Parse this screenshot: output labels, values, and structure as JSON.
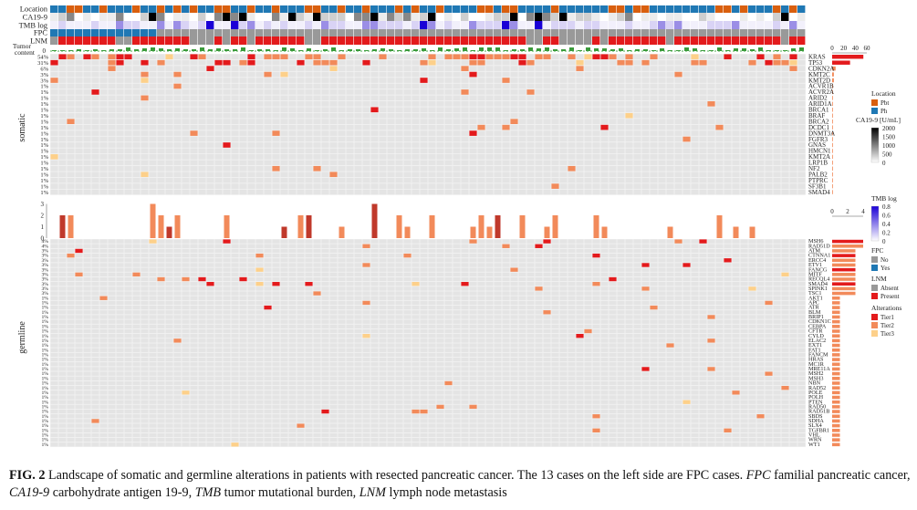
{
  "figure": {
    "track_labels": [
      "Location",
      "CA19-9",
      "TMB log",
      "FPC",
      "LNM"
    ],
    "tumor_content_label": [
      "Tumor",
      "content"
    ],
    "section_somatic": "somatic",
    "section_germline": "germline",
    "somatic_genes": [
      "KRAS",
      "TP53",
      "CDKN2A",
      "KMT2C",
      "KMT2D",
      "ACVR1B",
      "ACVR2A",
      "ARID2",
      "ARID1A",
      "BRCA1",
      "BRAF",
      "BRCA2",
      "DCDC1",
      "DNMT3A",
      "FGFR3",
      "GNAS",
      "HMCN1",
      "KMT2A",
      "LRP1B",
      "NF2",
      "PALB2",
      "PTPRC",
      "SF3B1",
      "SMAD4"
    ],
    "germline_genes": [
      "MSH6",
      "RAD51D",
      "ATM",
      "CTNNA1",
      "ERCC4",
      "ETV1",
      "FANCG",
      "MITF",
      "RECQL4",
      "SMAD4",
      "SPINK1",
      "TSC1",
      "AKT1",
      "APC",
      "ATR",
      "BLM",
      "BRIP1",
      "CDKN1C",
      "CEBPA",
      "CFTR",
      "CYLD",
      "ELAC2",
      "EXT1",
      "FAT1",
      "FANCM",
      "HRAS",
      "MC1R",
      "MRE11A",
      "MSH2",
      "MSH3",
      "NBN",
      "RAD52",
      "POLE",
      "POLH",
      "PTEN",
      "RAD50",
      "RAD51B",
      "SBDS",
      "SDHA",
      "SLX4",
      "TGFBR1",
      "VHL",
      "WRN",
      "WT1"
    ],
    "somatic_pct": [
      "54%",
      "31%",
      "6%",
      "3%",
      "3%",
      "1%",
      "1%",
      "1%",
      "1%",
      "1%",
      "1%",
      "1%",
      "1%",
      "1%",
      "1%",
      "1%",
      "1%",
      "1%",
      "1%",
      "1%",
      "1%",
      "1%",
      "1%",
      "1%"
    ],
    "germline_pct": [
      "4%",
      "4%",
      "3%",
      "3%",
      "3%",
      "3%",
      "3%",
      "3%",
      "3%",
      "3%",
      "3%",
      "3%",
      "1%",
      "1%",
      "1%",
      "1%",
      "1%",
      "1%",
      "1%",
      "1%",
      "1%",
      "1%",
      "1%",
      "1%",
      "1%",
      "1%",
      "1%",
      "1%",
      "1%",
      "1%",
      "1%",
      "1%",
      "1%",
      "1%",
      "1%",
      "1%",
      "1%",
      "1%",
      "1%",
      "1%",
      "1%",
      "1%",
      "1%",
      "1%"
    ],
    "somatic_bar_ticks": [
      "0",
      "20",
      "40",
      "60"
    ],
    "germline_bar_ticks": [
      "0",
      "2",
      "4"
    ],
    "mid_hist_ticks": [
      "0",
      "1",
      "2",
      "3"
    ],
    "tumor_content_ticks": [
      "0"
    ],
    "legend": {
      "location": {
        "title": "Location",
        "items": [
          {
            "label": "Pbt",
            "color": "#d95f0e"
          },
          {
            "label": "Ph",
            "color": "#1f78b4"
          }
        ]
      },
      "ca199": {
        "title": "CA19-9 [U/mL]",
        "ticks": [
          "2000",
          "1500",
          "1000",
          "500",
          "0"
        ]
      },
      "tmb": {
        "title": "TMB log",
        "ticks": [
          "0.8",
          "0.6",
          "0.4",
          "0.2",
          "0"
        ]
      },
      "fpc": {
        "title": "FPC",
        "items": [
          {
            "label": "No",
            "color": "#999999"
          },
          {
            "label": "Yes",
            "color": "#1f78b4"
          }
        ]
      },
      "lnm": {
        "title": "LNM",
        "items": [
          {
            "label": "Absent",
            "color": "#999999"
          },
          {
            "label": "Present",
            "color": "#e31a1c"
          }
        ]
      },
      "alterations": {
        "title": "Alterations",
        "items": [
          {
            "label": "Tier1",
            "color": "#e31a1c"
          },
          {
            "label": "Tier2",
            "color": "#f28a5a"
          },
          {
            "label": "Tier3",
            "color": "#fdd08a"
          }
        ]
      }
    }
  },
  "caption": {
    "label": "FIG. 2",
    "text": " Landscape of somatic and germline alterations in patients with resected pancreatic cancer. The 13 cases on the left side are FPC cases. ",
    "abbrev": [
      {
        "term": "FPC",
        "def": " familial pancreatic cancer, "
      },
      {
        "term": "CA19-9",
        "def": " carbohydrate antigen 19-9, "
      },
      {
        "term": "TMB",
        "def": " tumor mutational burden, "
      },
      {
        "term": "LNM",
        "def": " lymph node metastasis"
      }
    ]
  }
}
